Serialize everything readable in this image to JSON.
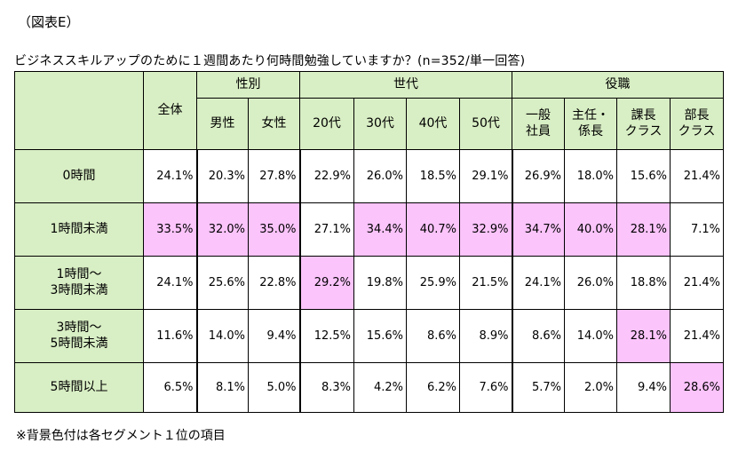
{
  "figure_label": "（図表E）",
  "question": "ビジネススキルアップのために１週間あたり何時間勉強していますか？(n=352/単一回答)",
  "note": "※背景色付は各セグメント１位の項目",
  "colors": {
    "header_bg": "#d8eec4",
    "highlight": "#fbc4fb"
  },
  "header": {
    "total": "全体",
    "groups": {
      "gender": "性別",
      "generation": "世代",
      "position": "役職"
    },
    "columns": {
      "male": "男性",
      "female": "女性",
      "age20": "20代",
      "age30": "30代",
      "age40": "40代",
      "age50": "50代",
      "staff_1": "一般",
      "staff_2": "社員",
      "chief_1": "主任・",
      "chief_2": "係長",
      "section_1": "課長",
      "section_2": "クラス",
      "dept_1": "部長",
      "dept_2": "クラス"
    }
  },
  "rows": [
    {
      "label_1": "0時間",
      "label_2": "",
      "values": [
        "24.1%",
        "20.3%",
        "27.8%",
        "22.9%",
        "26.0%",
        "18.5%",
        "29.1%",
        "26.9%",
        "18.0%",
        "15.6%",
        "21.4%"
      ],
      "highlight": [
        false,
        false,
        false,
        false,
        false,
        false,
        false,
        false,
        false,
        false,
        false
      ]
    },
    {
      "label_1": "1時間未満",
      "label_2": "",
      "values": [
        "33.5%",
        "32.0%",
        "35.0%",
        "27.1%",
        "34.4%",
        "40.7%",
        "32.9%",
        "34.7%",
        "40.0%",
        "28.1%",
        "7.1%"
      ],
      "highlight": [
        true,
        true,
        true,
        false,
        true,
        true,
        true,
        true,
        true,
        true,
        false
      ]
    },
    {
      "label_1": "1時間～",
      "label_2": "3時間未満",
      "values": [
        "24.1%",
        "25.6%",
        "22.8%",
        "29.2%",
        "19.8%",
        "25.9%",
        "21.5%",
        "24.1%",
        "26.0%",
        "18.8%",
        "21.4%"
      ],
      "highlight": [
        false,
        false,
        false,
        true,
        false,
        false,
        false,
        false,
        false,
        false,
        false
      ]
    },
    {
      "label_1": "3時間～",
      "label_2": "5時間未満",
      "values": [
        "11.6%",
        "14.0%",
        "9.4%",
        "12.5%",
        "15.6%",
        "8.6%",
        "8.9%",
        "8.6%",
        "14.0%",
        "28.1%",
        "21.4%"
      ],
      "highlight": [
        false,
        false,
        false,
        false,
        false,
        false,
        false,
        false,
        false,
        true,
        false
      ]
    },
    {
      "label_1": "5時間以上",
      "label_2": "",
      "values": [
        "6.5%",
        "8.1%",
        "5.0%",
        "8.3%",
        "4.2%",
        "6.2%",
        "7.6%",
        "5.7%",
        "2.0%",
        "9.4%",
        "28.6%"
      ],
      "highlight": [
        false,
        false,
        false,
        false,
        false,
        false,
        false,
        false,
        false,
        false,
        true
      ]
    }
  ]
}
